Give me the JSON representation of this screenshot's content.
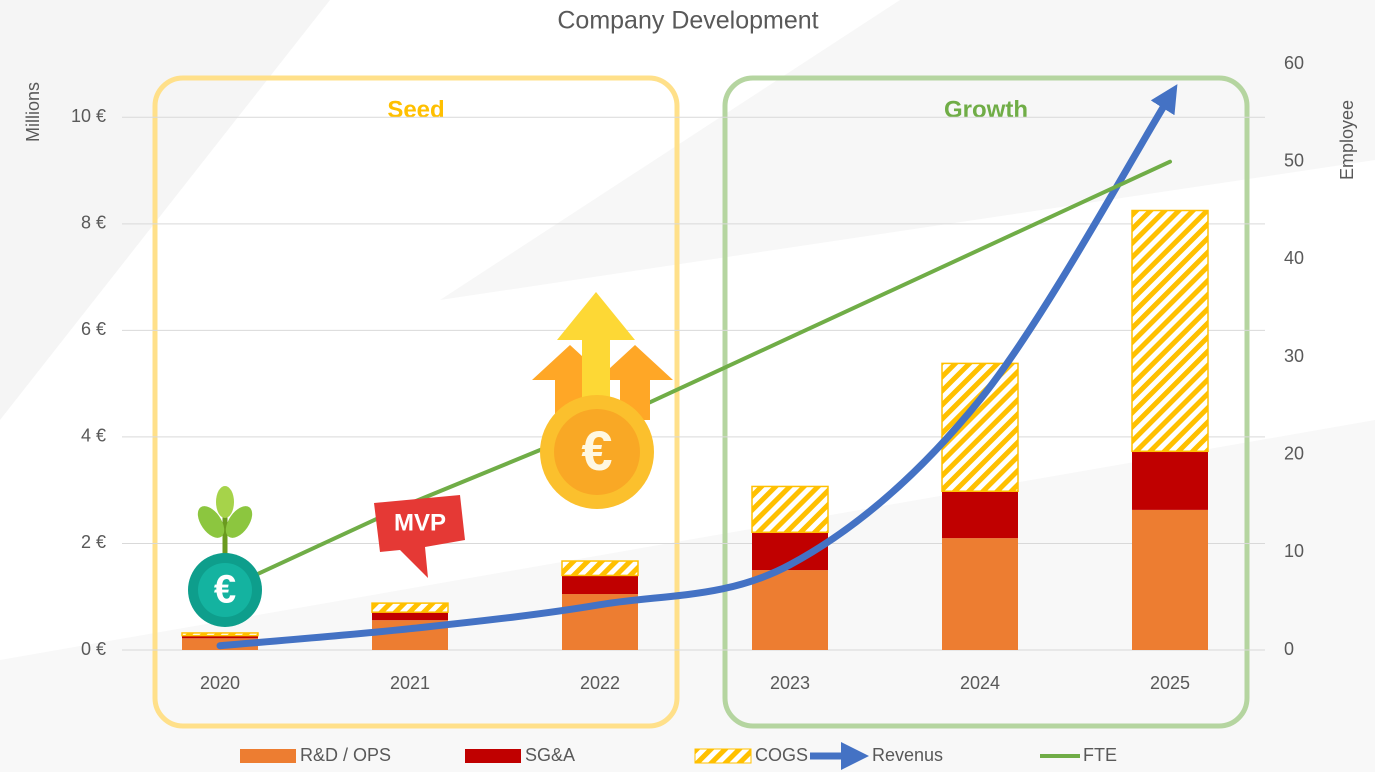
{
  "chart_data": {
    "type": "bar",
    "title": "Company Development",
    "y_label": "Millions",
    "y2_label": "Employee",
    "categories": [
      "2020",
      "2021",
      "2022",
      "2023",
      "2024",
      "2025"
    ],
    "ylim": [
      0,
      11
    ],
    "yticks": [
      {
        "value": 0,
        "label": "0 €"
      },
      {
        "value": 2,
        "label": "2 €"
      },
      {
        "value": 4,
        "label": "4 €"
      },
      {
        "value": 6,
        "label": "6 €"
      },
      {
        "value": 8,
        "label": "8 €"
      },
      {
        "value": 10,
        "label": "10 €"
      }
    ],
    "y2lim": [
      0,
      60
    ],
    "y2ticks": [
      0,
      10,
      20,
      30,
      40,
      50,
      60
    ],
    "grid": true,
    "legend": "bottom",
    "series": [
      {
        "name": "R&D / OPS",
        "kind": "bar",
        "color": "#ed7d31",
        "values": [
          0.22,
          0.56,
          1.05,
          1.5,
          2.1,
          2.63
        ]
      },
      {
        "name": "SG&A",
        "kind": "bar",
        "color": "#c00000",
        "values": [
          0.05,
          0.15,
          0.35,
          0.71,
          0.88,
          1.1
        ]
      },
      {
        "name": "COGS",
        "kind": "bar",
        "color": "#ffc000",
        "hatch": true,
        "values": [
          0.05,
          0.17,
          0.27,
          0.86,
          2.4,
          4.52
        ]
      },
      {
        "name": "Revenus",
        "kind": "line",
        "arrow": true,
        "color": "#4472c4",
        "values": [
          0.08,
          0.4,
          0.85,
          1.6,
          4.7,
          10.4
        ]
      },
      {
        "name": "FTE",
        "kind": "line",
        "axis": "y2",
        "color": "#70ad47",
        "values": [
          6,
          15,
          23,
          32,
          41,
          50
        ]
      }
    ],
    "regions": [
      {
        "label": "Seed",
        "from": "2020",
        "to": "2022",
        "color": "#ffc000",
        "border": "#ffe08a"
      },
      {
        "label": "Growth",
        "from": "2023",
        "to": "2025",
        "color": "#70ad47",
        "border": "#b5d5a0"
      }
    ],
    "annotations": [
      {
        "text": "MVP",
        "category": "2021"
      }
    ]
  }
}
